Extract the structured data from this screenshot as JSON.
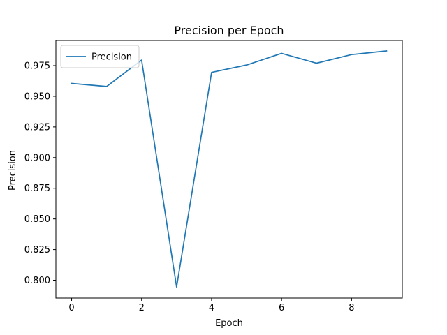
{
  "chart_data": {
    "type": "line",
    "title": "Precision per Epoch",
    "xlabel": "Epoch",
    "ylabel": "Precision",
    "xlim": [
      -0.45,
      9.45
    ],
    "ylim": [
      0.7855,
      0.9955
    ],
    "xticks": [
      0,
      2,
      4,
      6,
      8
    ],
    "yticks": [
      0.8,
      0.825,
      0.85,
      0.875,
      0.9,
      0.925,
      0.95,
      0.975
    ],
    "ytick_labels": [
      "0.800",
      "0.825",
      "0.850",
      "0.875",
      "0.900",
      "0.925",
      "0.950",
      "0.975"
    ],
    "grid": false,
    "legend": "upper-left",
    "series": [
      {
        "name": "Precision",
        "color": "#1f77b4",
        "x": [
          0,
          1,
          2,
          3,
          4,
          5,
          6,
          7,
          8,
          9
        ],
        "values": [
          0.9605,
          0.958,
          0.9795,
          0.7945,
          0.9695,
          0.9755,
          0.985,
          0.977,
          0.984,
          0.987
        ]
      }
    ]
  }
}
